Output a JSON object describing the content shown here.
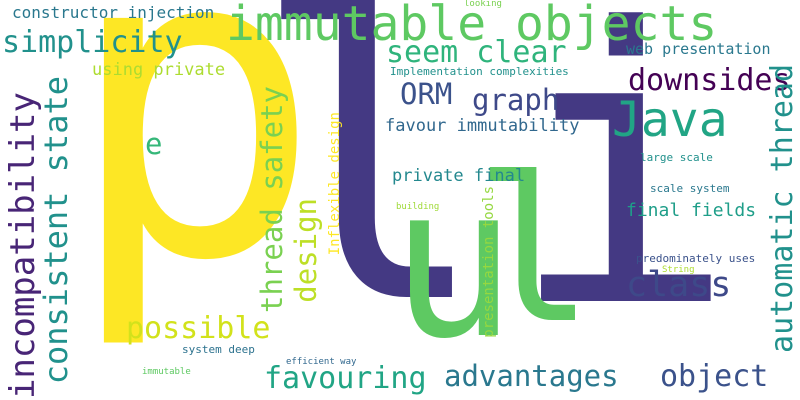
{
  "cloud": {
    "words": [
      {
        "id": "p",
        "text": "p",
        "color": "#fde725"
      },
      {
        "id": "l",
        "text": "l",
        "color": "#443983"
      },
      {
        "id": "i",
        "text": "i",
        "color": "#443983"
      },
      {
        "id": "u",
        "text": "u",
        "color": "#5ec962"
      },
      {
        "id": "l2",
        "text": "l",
        "color": "#5ec962"
      },
      {
        "id": "immutable-objects",
        "text": "immutable objects",
        "color": "#5ec962"
      },
      {
        "id": "java",
        "text": "Java",
        "color": "#21a585"
      },
      {
        "id": "constructor-injection",
        "text": "constructor injection",
        "color": "#2a788e"
      },
      {
        "id": "simplicity",
        "text": "simplicity",
        "color": "#21918c"
      },
      {
        "id": "seem-clear",
        "text": "seem clear",
        "color": "#2fb47c"
      },
      {
        "id": "web-presentation",
        "text": "web presentation",
        "color": "#2a788e"
      },
      {
        "id": "using-private",
        "text": "using private",
        "color": "#addc30"
      },
      {
        "id": "implementation-complexities",
        "text": "Implementation complexities",
        "color": "#21918c"
      },
      {
        "id": "downsides",
        "text": "downsides",
        "color": "#440154"
      },
      {
        "id": "orm",
        "text": "ORM",
        "color": "#3b528b"
      },
      {
        "id": "graph",
        "text": "graph",
        "color": "#3e4989"
      },
      {
        "id": "favour-immutability",
        "text": "favour immutability",
        "color": "#31688e"
      },
      {
        "id": "e",
        "text": "e",
        "color": "#35b779"
      },
      {
        "id": "private-final",
        "text": "private final",
        "color": "#23888e"
      },
      {
        "id": "large-scale",
        "text": "large scale",
        "color": "#21918c"
      },
      {
        "id": "scale-system",
        "text": "scale system",
        "color": "#2a788e"
      },
      {
        "id": "final-fields",
        "text": "final fields",
        "color": "#1f9e89"
      },
      {
        "id": "building",
        "text": "building",
        "color": "#a0da39"
      },
      {
        "id": "class",
        "text": "class",
        "color": "#3e4989"
      },
      {
        "id": "predominately-uses",
        "text": "predominately uses",
        "color": "#3b528b"
      },
      {
        "id": "string",
        "text": "String",
        "color": "#addc30"
      },
      {
        "id": "possible",
        "text": "possible",
        "color": "#d2e21b"
      },
      {
        "id": "system-deep",
        "text": "system deep",
        "color": "#2c728e"
      },
      {
        "id": "efficient-way",
        "text": "efficient way",
        "color": "#31688e"
      },
      {
        "id": "immutable",
        "text": "immutable",
        "color": "#5ec962"
      },
      {
        "id": "favouring",
        "text": "favouring",
        "color": "#21a585"
      },
      {
        "id": "advantages",
        "text": "advantages",
        "color": "#2a788e"
      },
      {
        "id": "object",
        "text": "object",
        "color": "#3b528b"
      },
      {
        "id": "looking",
        "text": "looking",
        "color": "#7ad151"
      },
      {
        "id": "incompatibility",
        "text": "incompatibility",
        "color": "#482576"
      },
      {
        "id": "consistent-state",
        "text": "consistent state",
        "color": "#21918c"
      },
      {
        "id": "thread-safety",
        "text": "thread safety",
        "color": "#7ad151"
      },
      {
        "id": "design",
        "text": "design",
        "color": "#bddf26"
      },
      {
        "id": "inflexible-design",
        "text": "Inflexible design",
        "color": "#fde725"
      },
      {
        "id": "presentation-tools",
        "text": "presentation tools",
        "color": "#95d840"
      },
      {
        "id": "automatic-thread",
        "text": "automatic thread",
        "color": "#21918c"
      }
    ]
  }
}
